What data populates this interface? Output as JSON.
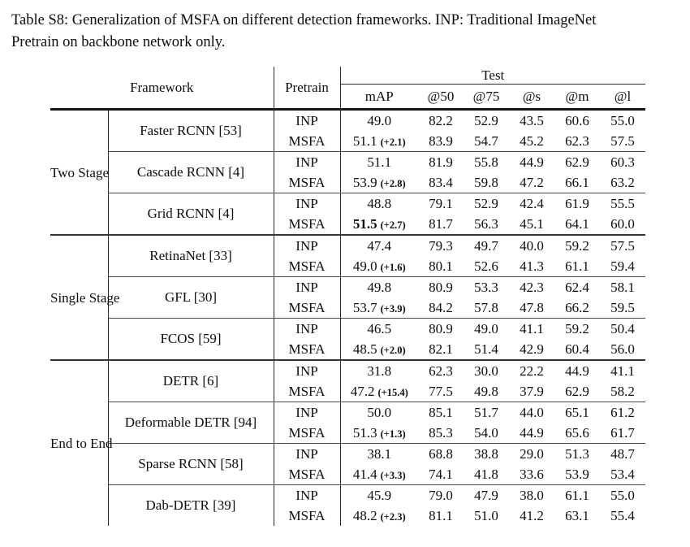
{
  "caption": {
    "lines": [
      "Table S8: Generalization of MSFA on different detection frameworks. INP: Traditional ImageNet",
      "Pretrain on backbone network only."
    ]
  },
  "table": {
    "header": {
      "framework": "Framework",
      "pretrain": "Pretrain",
      "test": "Test",
      "metrics": [
        "mAP",
        "@50",
        "@75",
        "@s",
        "@m",
        "@l"
      ]
    },
    "groups": [
      {
        "label": "Two Stage",
        "frameworks": [
          {
            "name": "Faster RCNN [53]",
            "rows": [
              {
                "pretrain": "INP",
                "map": "49.0",
                "gain": "",
                "map_bold": false,
                "values": [
                  "82.2",
                  "52.9",
                  "43.5",
                  "60.6",
                  "55.0"
                ]
              },
              {
                "pretrain": "MSFA",
                "map": "51.1",
                "gain": "(+2.1)",
                "map_bold": false,
                "values": [
                  "83.9",
                  "54.7",
                  "45.2",
                  "62.3",
                  "57.5"
                ]
              }
            ]
          },
          {
            "name": "Cascade RCNN [4]",
            "rows": [
              {
                "pretrain": "INP",
                "map": "51.1",
                "gain": "",
                "map_bold": false,
                "values": [
                  "81.9",
                  "55.8",
                  "44.9",
                  "62.9",
                  "60.3"
                ]
              },
              {
                "pretrain": "MSFA",
                "map": "53.9",
                "gain": "(+2.8)",
                "map_bold": false,
                "values": [
                  "83.4",
                  "59.8",
                  "47.2",
                  "66.1",
                  "63.2"
                ]
              }
            ]
          },
          {
            "name": "Grid RCNN [4]",
            "rows": [
              {
                "pretrain": "INP",
                "map": "48.8",
                "gain": "",
                "map_bold": false,
                "values": [
                  "79.1",
                  "52.9",
                  "42.4",
                  "61.9",
                  "55.5"
                ]
              },
              {
                "pretrain": "MSFA",
                "map": "51.5",
                "gain": "(+2.7)",
                "map_bold": true,
                "values": [
                  "81.7",
                  "56.3",
                  "45.1",
                  "64.1",
                  "60.0"
                ]
              }
            ]
          }
        ]
      },
      {
        "label": "Single Stage",
        "frameworks": [
          {
            "name": "RetinaNet [33]",
            "rows": [
              {
                "pretrain": "INP",
                "map": "47.4",
                "gain": "",
                "map_bold": false,
                "values": [
                  "79.3",
                  "49.7",
                  "40.0",
                  "59.2",
                  "57.5"
                ]
              },
              {
                "pretrain": "MSFA",
                "map": "49.0",
                "gain": "(+1.6)",
                "map_bold": false,
                "values": [
                  "80.1",
                  "52.6",
                  "41.3",
                  "61.1",
                  "59.4"
                ]
              }
            ]
          },
          {
            "name": "GFL [30]",
            "rows": [
              {
                "pretrain": "INP",
                "map": "49.8",
                "gain": "",
                "map_bold": false,
                "values": [
                  "80.9",
                  "53.3",
                  "42.3",
                  "62.4",
                  "58.1"
                ]
              },
              {
                "pretrain": "MSFA",
                "map": "53.7",
                "gain": "(+3.9)",
                "map_bold": false,
                "values": [
                  "84.2",
                  "57.8",
                  "47.8",
                  "66.2",
                  "59.5"
                ]
              }
            ]
          },
          {
            "name": "FCOS [59]",
            "rows": [
              {
                "pretrain": "INP",
                "map": "46.5",
                "gain": "",
                "map_bold": false,
                "values": [
                  "80.9",
                  "49.0",
                  "41.1",
                  "59.2",
                  "50.4"
                ]
              },
              {
                "pretrain": "MSFA",
                "map": "48.5",
                "gain": "(+2.0)",
                "map_bold": false,
                "values": [
                  "82.1",
                  "51.4",
                  "42.9",
                  "60.4",
                  "56.0"
                ]
              }
            ]
          }
        ]
      },
      {
        "label": "End to End",
        "frameworks": [
          {
            "name": "DETR [6]",
            "rows": [
              {
                "pretrain": "INP",
                "map": "31.8",
                "gain": "",
                "map_bold": false,
                "values": [
                  "62.3",
                  "30.0",
                  "22.2",
                  "44.9",
                  "41.1"
                ]
              },
              {
                "pretrain": "MSFA",
                "map": "47.2",
                "gain": "(+15.4)",
                "map_bold": false,
                "values": [
                  "77.5",
                  "49.8",
                  "37.9",
                  "62.9",
                  "58.2"
                ]
              }
            ]
          },
          {
            "name": "Deformable DETR [94]",
            "rows": [
              {
                "pretrain": "INP",
                "map": "50.0",
                "gain": "",
                "map_bold": false,
                "values": [
                  "85.1",
                  "51.7",
                  "44.0",
                  "65.1",
                  "61.2"
                ]
              },
              {
                "pretrain": "MSFA",
                "map": "51.3",
                "gain": "(+1.3)",
                "map_bold": false,
                "values": [
                  "85.3",
                  "54.0",
                  "44.9",
                  "65.6",
                  "61.7"
                ]
              }
            ]
          },
          {
            "name": "Sparse RCNN [58]",
            "rows": [
              {
                "pretrain": "INP",
                "map": "38.1",
                "gain": "",
                "map_bold": false,
                "values": [
                  "68.8",
                  "38.8",
                  "29.0",
                  "51.3",
                  "48.7"
                ]
              },
              {
                "pretrain": "MSFA",
                "map": "41.4",
                "gain": "(+3.3)",
                "map_bold": false,
                "values": [
                  "74.1",
                  "41.8",
                  "33.6",
                  "53.9",
                  "53.4"
                ]
              }
            ]
          },
          {
            "name": "Dab-DETR [39]",
            "rows": [
              {
                "pretrain": "INP",
                "map": "45.9",
                "gain": "",
                "map_bold": false,
                "values": [
                  "79.0",
                  "47.9",
                  "38.0",
                  "61.1",
                  "55.0"
                ]
              },
              {
                "pretrain": "MSFA",
                "map": "48.2",
                "gain": "(+2.3)",
                "map_bold": false,
                "values": [
                  "81.1",
                  "51.0",
                  "41.2",
                  "63.1",
                  "55.4"
                ]
              }
            ]
          }
        ]
      }
    ]
  }
}
